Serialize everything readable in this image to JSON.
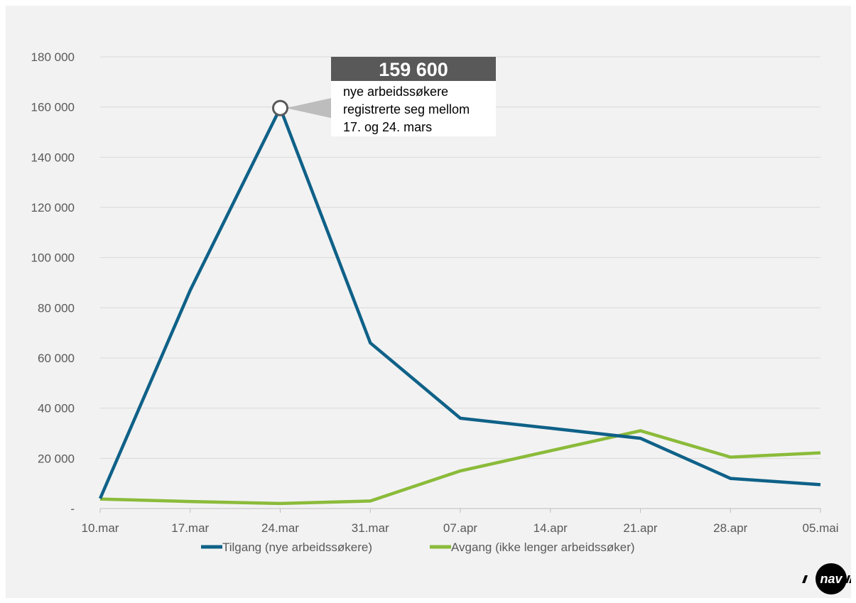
{
  "chart_data": {
    "type": "line",
    "categories": [
      "10.mar",
      "17.mar",
      "24.mar",
      "31.mar",
      "07.apr",
      "14.apr",
      "21.apr",
      "28.apr",
      "05.mai"
    ],
    "series": [
      {
        "name": "Tilgang (nye arbeidssøkere)",
        "color": "#0f6188",
        "values": [
          4000,
          87000,
          159600,
          66000,
          36000,
          32000,
          28000,
          12000,
          9500
        ]
      },
      {
        "name": "Avgang (ikke lenger arbeidssøker)",
        "color": "#8bbb3a",
        "values": [
          3800,
          2800,
          2000,
          3000,
          15000,
          23000,
          31000,
          20500,
          22200
        ]
      }
    ],
    "ylim": [
      0,
      180000
    ],
    "yticks": [
      0,
      20000,
      40000,
      60000,
      80000,
      100000,
      120000,
      140000,
      160000,
      180000
    ],
    "ytick_labels": [
      "-",
      "20 000",
      "40 000",
      "60 000",
      "80 000",
      "100 000",
      "120 000",
      "140 000",
      "160 000",
      "180 000"
    ],
    "grid": true,
    "legend_position": "bottom",
    "annotation": {
      "value": "159 600",
      "lines": [
        "nye arbeidssøkere",
        "registrerte seg mellom",
        "17. og 24. mars"
      ],
      "category": "24.mar"
    }
  },
  "logo": {
    "text": "nav"
  }
}
